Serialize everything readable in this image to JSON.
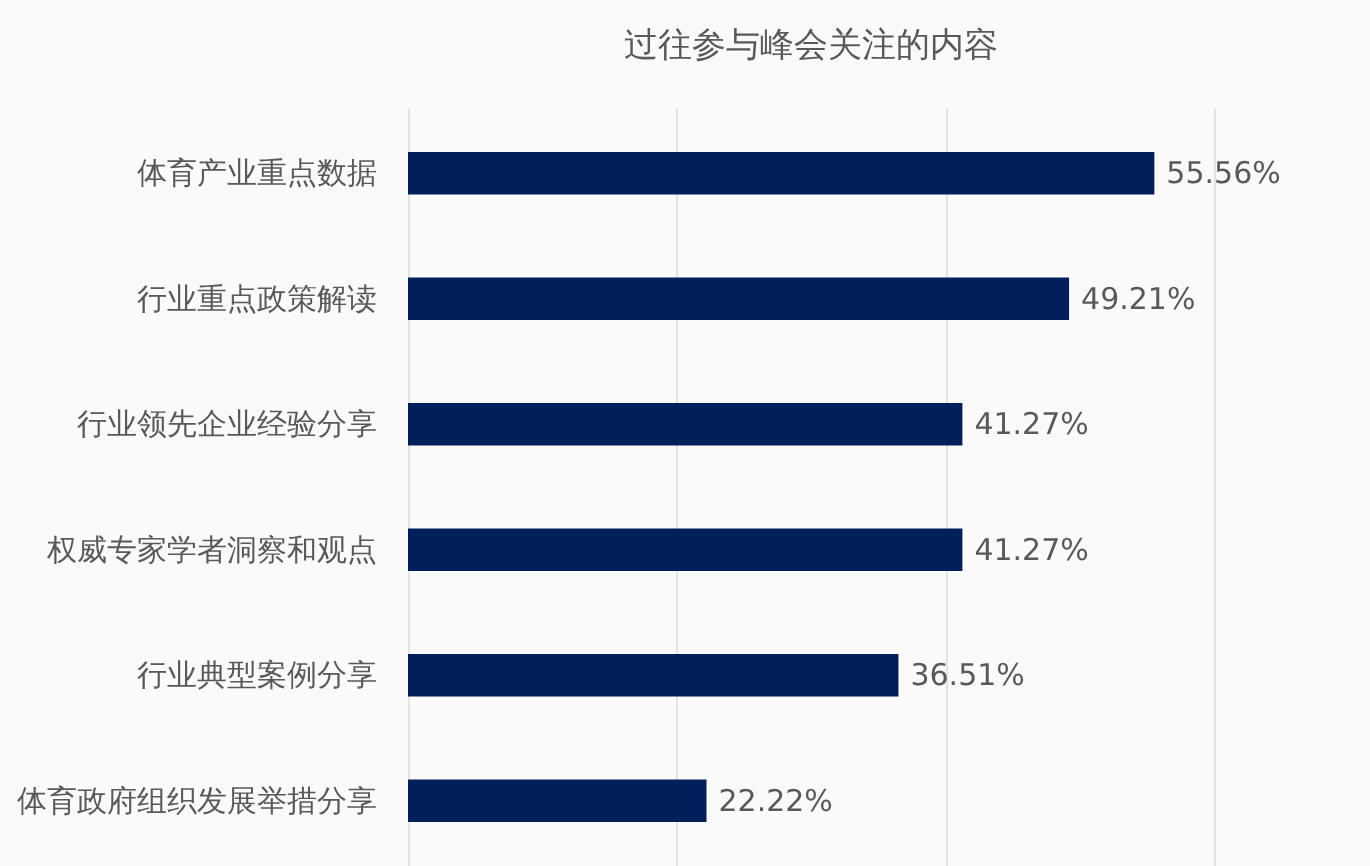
{
  "chart_data": {
    "type": "bar",
    "orientation": "horizontal",
    "title": "过往参与峰会关注的内容",
    "categories": [
      "体育产业重点数据",
      "行业重点政策解读",
      "行业领先企业经验分享",
      "权威专家学者洞察和观点",
      "行业典型案例分享",
      "体育政府组织发展举措分享"
    ],
    "values": [
      55.56,
      49.21,
      41.27,
      41.27,
      36.51,
      22.22
    ],
    "value_labels": [
      "55.56%",
      "49.21%",
      "41.27%",
      "41.27%",
      "36.51%",
      "22.22%"
    ],
    "color": "#001f5b",
    "xlim": [
      0,
      60
    ],
    "xticks": [
      {
        "value": 0,
        "label": null
      },
      {
        "value": 20,
        "label": null
      },
      {
        "value": 40,
        "label": null
      },
      {
        "value": 60,
        "label": null
      }
    ],
    "tick_labels": "y",
    "grid": "x"
  }
}
